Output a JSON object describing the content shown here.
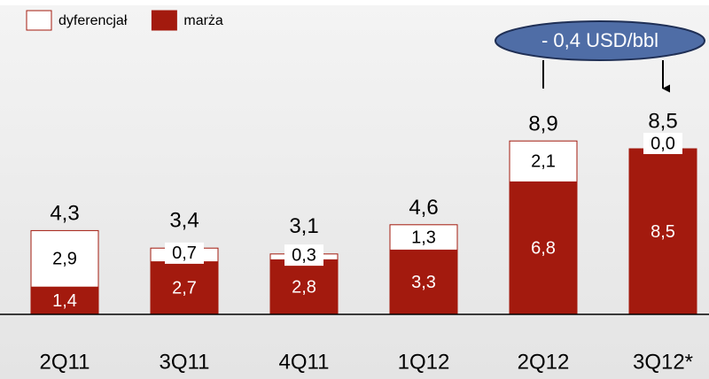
{
  "chart_data": {
    "type": "stacked_bar",
    "categories": [
      "2Q11",
      "3Q11",
      "4Q11",
      "1Q12",
      "2Q12",
      "3Q12*"
    ],
    "series": [
      {
        "name": "marża",
        "color": "#a31a0e",
        "values": [
          1.4,
          2.7,
          2.8,
          3.3,
          6.8,
          8.5
        ],
        "value_labels": [
          "1,4",
          "2,7",
          "2,8",
          "3,3",
          "6,8",
          "8,5"
        ]
      },
      {
        "name": "dyferencjał",
        "color": "#ffffff",
        "values": [
          2.9,
          0.7,
          0.3,
          1.3,
          2.1,
          0.0
        ],
        "value_labels": [
          "2,9",
          "0,7",
          "0,3",
          "1,3",
          "2,1",
          "0,0"
        ]
      }
    ],
    "totals": [
      4.3,
      3.4,
      3.1,
      4.6,
      8.9,
      8.5
    ],
    "total_labels": [
      "4,3",
      "3,4",
      "3,1",
      "4,6",
      "8,9",
      "8,5"
    ],
    "annotation": "- 0,4 USD/bbl"
  }
}
